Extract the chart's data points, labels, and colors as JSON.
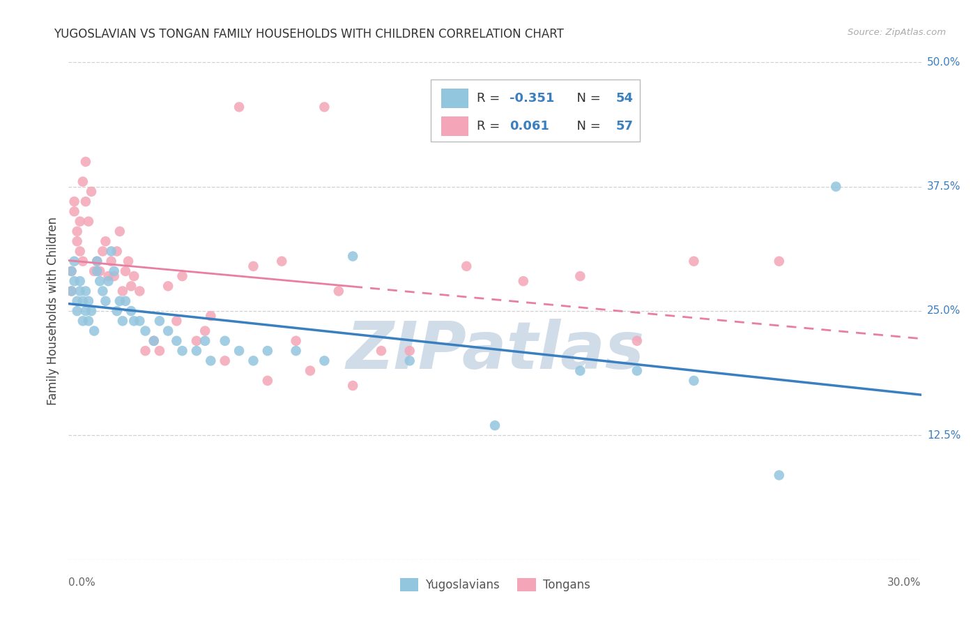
{
  "title": "YUGOSLAVIAN VS TONGAN FAMILY HOUSEHOLDS WITH CHILDREN CORRELATION CHART",
  "source": "Source: ZipAtlas.com",
  "ylabel": "Family Households with Children",
  "x_min": 0.0,
  "x_max": 0.3,
  "y_min": 0.0,
  "y_max": 0.5,
  "y_ticks": [
    0.0,
    0.125,
    0.25,
    0.375,
    0.5
  ],
  "y_tick_labels": [
    "",
    "12.5%",
    "25.0%",
    "37.5%",
    "50.0%"
  ],
  "x_ticks": [
    0.0,
    0.05,
    0.1,
    0.15,
    0.2,
    0.25,
    0.3
  ],
  "yugoslavian_color": "#92c5de",
  "tongan_color": "#f4a6b8",
  "yugoslavian_line_color": "#3a7fbf",
  "tongan_line_color": "#e87fa0",
  "label_color": "#3a7fbf",
  "grid_color": "#cccccc",
  "background_color": "#ffffff",
  "watermark_text": "ZIPatlas",
  "watermark_color": "#d0dde8",
  "legend_label_yugoslavian": "Yugoslavians",
  "legend_label_tongan": "Tongans",
  "R_yugoslavian": -0.351,
  "N_yugoslavian": 54,
  "R_tongan": 0.061,
  "N_tongan": 57,
  "yugo_x": [
    0.001,
    0.001,
    0.002,
    0.002,
    0.003,
    0.003,
    0.004,
    0.004,
    0.005,
    0.005,
    0.006,
    0.006,
    0.007,
    0.007,
    0.008,
    0.009,
    0.01,
    0.01,
    0.011,
    0.012,
    0.013,
    0.014,
    0.015,
    0.016,
    0.017,
    0.018,
    0.019,
    0.02,
    0.022,
    0.023,
    0.025,
    0.027,
    0.03,
    0.032,
    0.035,
    0.038,
    0.04,
    0.045,
    0.048,
    0.05,
    0.055,
    0.06,
    0.065,
    0.07,
    0.08,
    0.09,
    0.1,
    0.12,
    0.15,
    0.18,
    0.2,
    0.22,
    0.25,
    0.27
  ],
  "yugo_y": [
    0.29,
    0.27,
    0.28,
    0.3,
    0.26,
    0.25,
    0.28,
    0.27,
    0.26,
    0.24,
    0.25,
    0.27,
    0.26,
    0.24,
    0.25,
    0.23,
    0.3,
    0.29,
    0.28,
    0.27,
    0.26,
    0.28,
    0.31,
    0.29,
    0.25,
    0.26,
    0.24,
    0.26,
    0.25,
    0.24,
    0.24,
    0.23,
    0.22,
    0.24,
    0.23,
    0.22,
    0.21,
    0.21,
    0.22,
    0.2,
    0.22,
    0.21,
    0.2,
    0.21,
    0.21,
    0.2,
    0.305,
    0.2,
    0.135,
    0.19,
    0.19,
    0.18,
    0.085,
    0.375
  ],
  "tonga_x": [
    0.001,
    0.001,
    0.002,
    0.002,
    0.003,
    0.003,
    0.004,
    0.004,
    0.005,
    0.005,
    0.006,
    0.006,
    0.007,
    0.008,
    0.009,
    0.01,
    0.011,
    0.012,
    0.013,
    0.014,
    0.015,
    0.016,
    0.017,
    0.018,
    0.019,
    0.02,
    0.021,
    0.022,
    0.023,
    0.025,
    0.027,
    0.03,
    0.032,
    0.035,
    0.038,
    0.04,
    0.045,
    0.048,
    0.05,
    0.055,
    0.06,
    0.065,
    0.07,
    0.075,
    0.08,
    0.085,
    0.09,
    0.095,
    0.1,
    0.11,
    0.12,
    0.14,
    0.16,
    0.18,
    0.2,
    0.22,
    0.25
  ],
  "tonga_y": [
    0.29,
    0.27,
    0.35,
    0.36,
    0.32,
    0.33,
    0.31,
    0.34,
    0.3,
    0.38,
    0.36,
    0.4,
    0.34,
    0.37,
    0.29,
    0.3,
    0.29,
    0.31,
    0.32,
    0.285,
    0.3,
    0.285,
    0.31,
    0.33,
    0.27,
    0.29,
    0.3,
    0.275,
    0.285,
    0.27,
    0.21,
    0.22,
    0.21,
    0.275,
    0.24,
    0.285,
    0.22,
    0.23,
    0.245,
    0.2,
    0.455,
    0.295,
    0.18,
    0.3,
    0.22,
    0.19,
    0.455,
    0.27,
    0.175,
    0.21,
    0.21,
    0.295,
    0.28,
    0.285,
    0.22,
    0.3,
    0.3
  ]
}
